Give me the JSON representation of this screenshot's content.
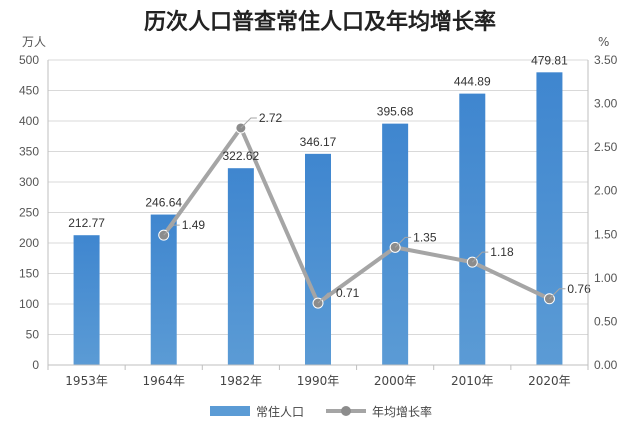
{
  "chart_data": {
    "type": "bar",
    "title": "历次人口普查常住人口及年均增长率",
    "categories": [
      "1953年",
      "1964年",
      "1982年",
      "1990年",
      "2000年",
      "2010年",
      "2020年"
    ],
    "series": [
      {
        "name": "常住人口",
        "kind": "bar",
        "axis": "left",
        "values": [
          212.77,
          246.64,
          322.62,
          346.17,
          395.68,
          444.89,
          479.81
        ],
        "labels": [
          "212.77",
          "246.64",
          "322.62",
          "346.17",
          "395.68",
          "444.89",
          "479.81"
        ]
      },
      {
        "name": "年均增长率",
        "kind": "line",
        "axis": "right",
        "values": [
          null,
          1.49,
          2.72,
          0.71,
          1.35,
          1.18,
          0.76
        ],
        "labels": [
          "",
          "1.49",
          "2.72",
          "0.71",
          "1.35",
          "1.18",
          "0.76"
        ]
      }
    ],
    "y_left": {
      "unit": "万人",
      "range": [
        0,
        500
      ],
      "ticks": [
        0,
        50,
        100,
        150,
        200,
        250,
        300,
        350,
        400,
        450,
        500
      ],
      "tick_labels": [
        "0",
        "50",
        "100",
        "150",
        "200",
        "250",
        "300",
        "350",
        "400",
        "450",
        "500"
      ]
    },
    "y_right": {
      "unit": "%",
      "range": [
        0,
        3.5
      ],
      "ticks": [
        0,
        0.5,
        1,
        1.5,
        2,
        2.5,
        3,
        3.5
      ],
      "tick_labels": [
        "0.00",
        "0.50",
        "1.00",
        "1.50",
        "2.00",
        "2.50",
        "3.00",
        "3.50"
      ]
    },
    "grid": true,
    "legend": "bottom-center",
    "colors": {
      "bar": "#5b9bd5",
      "bar_top": "#3f86cf",
      "line": "#a5a5a5",
      "marker": "#8c8c8c",
      "grid": "#d9d9d9",
      "callout": "#a5a5a5"
    }
  }
}
